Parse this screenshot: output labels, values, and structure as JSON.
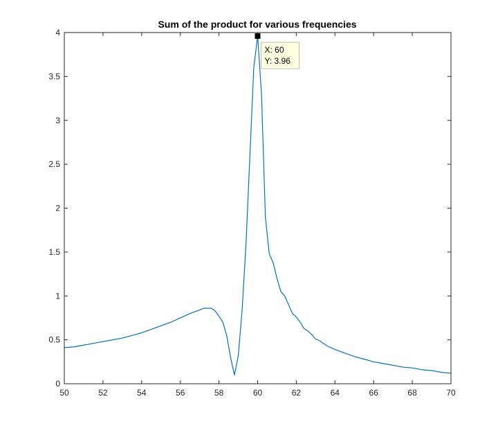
{
  "chart_data": {
    "type": "line",
    "title": "Sum of the product for various frequencies",
    "xlabel": "",
    "ylabel": "",
    "xlim": [
      50,
      70
    ],
    "ylim": [
      0,
      4
    ],
    "xticks": [
      50,
      52,
      54,
      56,
      58,
      60,
      62,
      64,
      66,
      68,
      70
    ],
    "yticks": [
      0,
      0.5,
      1,
      1.5,
      2,
      2.5,
      3,
      3.5,
      4
    ],
    "xtick_labels": [
      "50",
      "52",
      "54",
      "56",
      "58",
      "60",
      "62",
      "64",
      "66",
      "68",
      "70"
    ],
    "ytick_labels": [
      "0",
      "0.5",
      "1",
      "1.5",
      "2",
      "2.5",
      "3",
      "3.5",
      "4"
    ],
    "grid": false,
    "line_color": "#0072bd",
    "series": [
      {
        "x": [
          50,
          50.5,
          51,
          51.5,
          52,
          52.5,
          53,
          53.5,
          54,
          54.5,
          55,
          55.5,
          56,
          56.5,
          57,
          57.2,
          57.6,
          57.8,
          58,
          58.2,
          58.4,
          58.6,
          58.8,
          59,
          59.2,
          59.4,
          59.6,
          59.8,
          60,
          60.2,
          60.4,
          60.6,
          60.8,
          61,
          61.2,
          61.4,
          61.6,
          61.8,
          62,
          62.2,
          62.4,
          62.6,
          62.8,
          63,
          63.2,
          63.4,
          63.6,
          63.8,
          64,
          64.5,
          65,
          65.5,
          66,
          66.5,
          67,
          67.5,
          68,
          68.5,
          69,
          69.5,
          70
        ],
        "y": [
          0.41,
          0.42,
          0.44,
          0.46,
          0.48,
          0.5,
          0.52,
          0.55,
          0.58,
          0.62,
          0.66,
          0.7,
          0.75,
          0.8,
          0.84,
          0.86,
          0.86,
          0.83,
          0.77,
          0.7,
          0.55,
          0.3,
          0.1,
          0.32,
          0.85,
          1.6,
          2.6,
          3.6,
          3.96,
          3.3,
          1.9,
          1.48,
          1.38,
          1.2,
          1.05,
          1.0,
          0.9,
          0.8,
          0.76,
          0.7,
          0.63,
          0.6,
          0.56,
          0.51,
          0.49,
          0.46,
          0.43,
          0.41,
          0.39,
          0.35,
          0.31,
          0.28,
          0.25,
          0.23,
          0.21,
          0.19,
          0.18,
          0.16,
          0.15,
          0.13,
          0.12
        ]
      }
    ],
    "datatip": {
      "x_label": "X: 60",
      "y_label": "Y: 3.96",
      "x": 60,
      "y": 3.96
    }
  }
}
